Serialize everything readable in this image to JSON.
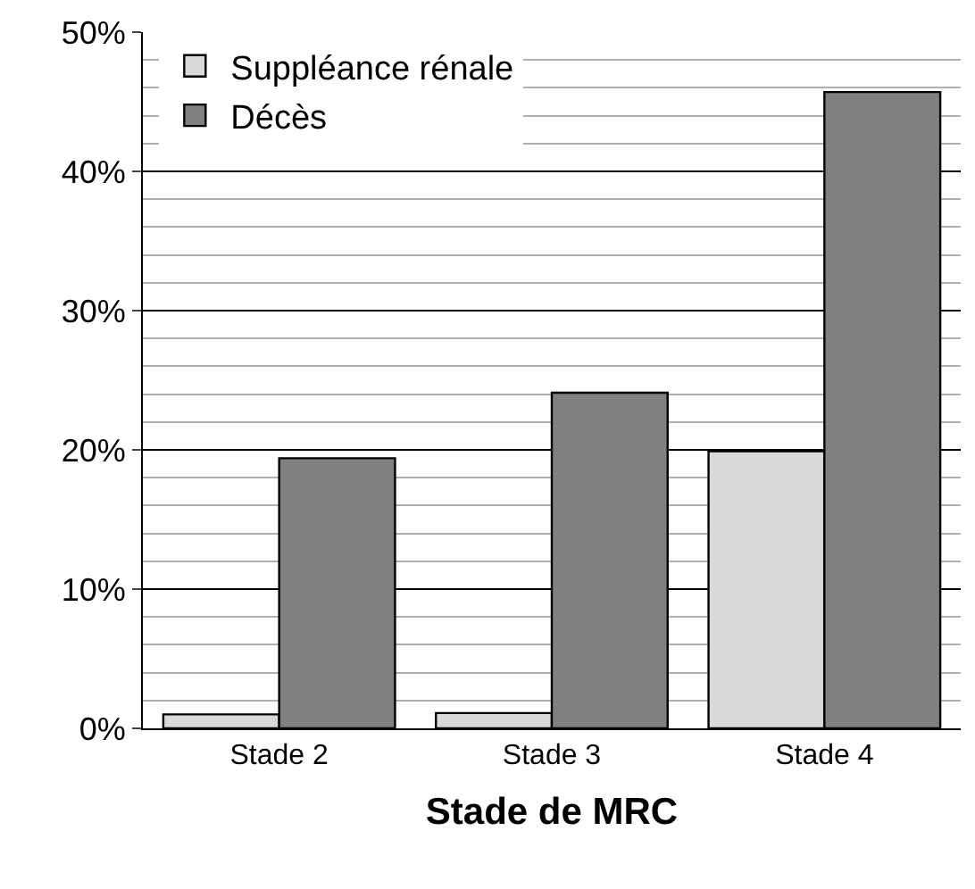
{
  "chart_data": {
    "type": "bar",
    "xlabel": "Stade de MRC",
    "categories": [
      "Stade 2",
      "Stade 3",
      "Stade 4"
    ],
    "series": [
      {
        "name": "Suppléance rénale",
        "color": "#d9d9d9",
        "values": [
          1.0,
          1.1,
          19.9
        ]
      },
      {
        "name": "Décès",
        "color": "#808080",
        "values": [
          19.4,
          24.1,
          45.7
        ]
      }
    ],
    "ylim": [
      0,
      50
    ],
    "yticks": [
      {
        "value": 0,
        "label": "0%"
      },
      {
        "value": 10,
        "label": "10%"
      },
      {
        "value": 20,
        "label": "20%"
      },
      {
        "value": 30,
        "label": "30%"
      },
      {
        "value": 40,
        "label": "40%"
      },
      {
        "value": 50,
        "label": "50%"
      }
    ],
    "grid": "y",
    "legend": "top left"
  }
}
